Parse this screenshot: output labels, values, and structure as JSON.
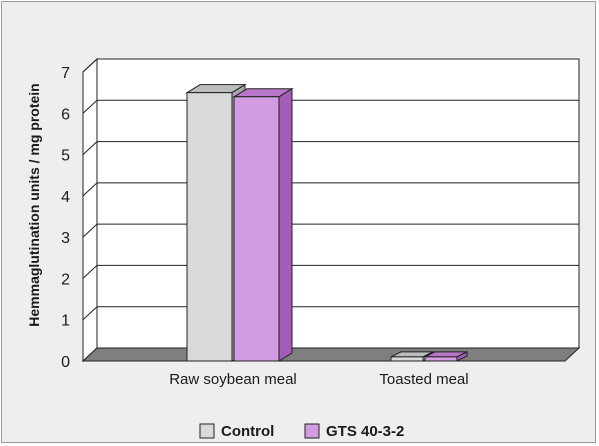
{
  "chart_data": {
    "type": "bar",
    "title": "",
    "xlabel": "",
    "ylabel": "Hemmaglutination units / mg protein",
    "ylim": [
      0,
      7
    ],
    "yticks": [
      0,
      1,
      2,
      3,
      4,
      5,
      6,
      7
    ],
    "grid": true,
    "legend_position": "bottom",
    "categories": [
      "Raw soybean meal",
      "Toasted meal"
    ],
    "series": [
      {
        "name": "Control",
        "values": [
          6.5,
          0.1
        ],
        "color": "#d9d9d9",
        "side_color": "#a8a8a8",
        "top_color": "#bdbdbd"
      },
      {
        "name": "GTS 40-3-2",
        "values": [
          6.4,
          0.1
        ],
        "color": "#d39be0",
        "side_color": "#a35cb7",
        "top_color": "#b876c8"
      }
    ],
    "floor_color": "#7f7f7f"
  }
}
